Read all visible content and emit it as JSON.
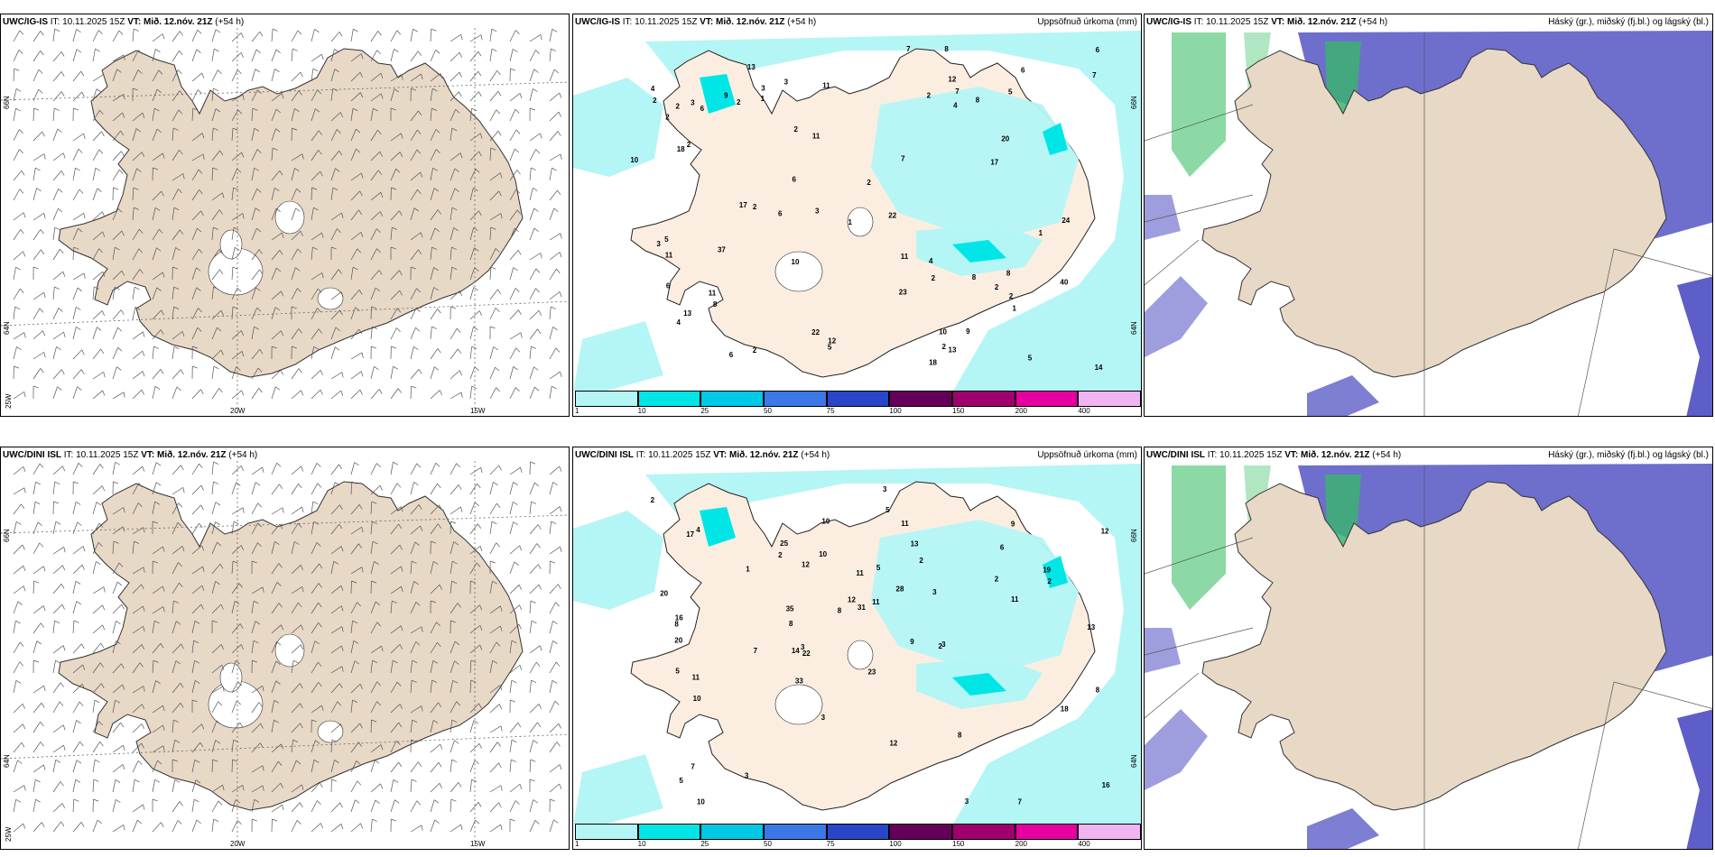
{
  "panels": [
    {
      "row": 0,
      "col": 0,
      "kind": "wind",
      "title_bold": "UWC/IG-IS",
      "it": "IT: 10.11.2025 15Z",
      "vt_label": "VT: Mið. 12.nóv. 21Z",
      "offset": "(+54 h)",
      "right_title": ""
    },
    {
      "row": 0,
      "col": 1,
      "kind": "precip",
      "title_bold": "UWC/IG-IS",
      "it": "IT: 10.11.2025 15Z",
      "vt_label": "VT: Mið. 12.nóv. 21Z",
      "offset": "(+54 h)",
      "right_title": "Uppsöfnuð úrkoma (mm)"
    },
    {
      "row": 0,
      "col": 2,
      "kind": "cloud",
      "title_bold": "UWC/IG-IS",
      "it": "IT: 10.11.2025 15Z",
      "vt_label": "VT: Mið. 12.nóv. 21Z",
      "offset": "(+54 h)",
      "right_title": "Háský (gr.), miðský (fj.bl.) og lágský (bl.)"
    },
    {
      "row": 1,
      "col": 0,
      "kind": "wind",
      "title_bold": "UWC/DINI ISL",
      "it": "IT: 10.11.2025 15Z",
      "vt_label": "VT: Mið. 12.nóv. 21Z",
      "offset": "(+54 h)",
      "right_title": ""
    },
    {
      "row": 1,
      "col": 1,
      "kind": "precip",
      "title_bold": "UWC/DINI ISL",
      "it": "IT: 10.11.2025 15Z",
      "vt_label": "VT: Mið. 12.nóv. 21Z",
      "offset": "(+54 h)",
      "right_title": "Uppsöfnuð úrkoma (mm)"
    },
    {
      "row": 1,
      "col": 2,
      "kind": "cloud",
      "title_bold": "UWC/DINI ISL",
      "it": "IT: 10.11.2025 15Z",
      "vt_label": "VT: Mið. 12.nóv. 21Z",
      "offset": "(+54 h)",
      "right_title": "Háský (gr.), miðský (fj.bl.) og lágský (bl.)"
    }
  ],
  "lat_labels": [
    "66N",
    "64N"
  ],
  "lon_labels": [
    "25W",
    "20W",
    "15W"
  ],
  "colorbar": {
    "ticks": [
      "1",
      "10",
      "25",
      "50",
      "75",
      "100",
      "150",
      "200",
      "400"
    ],
    "colors": [
      "#b4f5f5",
      "#00e6e6",
      "#00c8e6",
      "#3c78e6",
      "#2846c8",
      "#64005a",
      "#a0006e",
      "#e600a0",
      "#f0b4f0"
    ]
  },
  "precip_values": {
    "top": [
      "2",
      "2",
      "3",
      "2",
      "3",
      "4",
      "2",
      "5",
      "6",
      "3",
      "5",
      "3",
      "2",
      "24",
      "17",
      "4",
      "4",
      "8",
      "9",
      "10",
      "23",
      "40",
      "22",
      "8",
      "6",
      "11",
      "14",
      "13",
      "20",
      "2",
      "2",
      "5",
      "4",
      "1",
      "1",
      "12",
      "8",
      "13",
      "8",
      "37",
      "18",
      "12",
      "22",
      "17",
      "3",
      "2",
      "11",
      "7",
      "6",
      "6",
      "10",
      "9",
      "7",
      "6",
      "11",
      "11",
      "5",
      "6",
      "2",
      "2",
      "8",
      "6",
      "2",
      "18",
      "13",
      "11",
      "10",
      "7",
      "1",
      "1",
      "2",
      "2",
      "2",
      "7"
    ],
    "bottom": [
      "2",
      "2",
      "2",
      "3",
      "1",
      "3",
      "3",
      "10",
      "25",
      "20",
      "3",
      "2",
      "9",
      "8",
      "8",
      "7",
      "11",
      "10",
      "31",
      "33",
      "20",
      "10",
      "14",
      "12",
      "17",
      "16",
      "18",
      "6",
      "8",
      "12",
      "10",
      "7",
      "11",
      "12",
      "35",
      "28",
      "16",
      "23",
      "2",
      "9",
      "8",
      "11",
      "5",
      "11",
      "7",
      "5",
      "13",
      "12",
      "8",
      "19",
      "22",
      "13",
      "5",
      "3",
      "4",
      "2",
      "5",
      "3",
      "3",
      "11"
    ]
  }
}
